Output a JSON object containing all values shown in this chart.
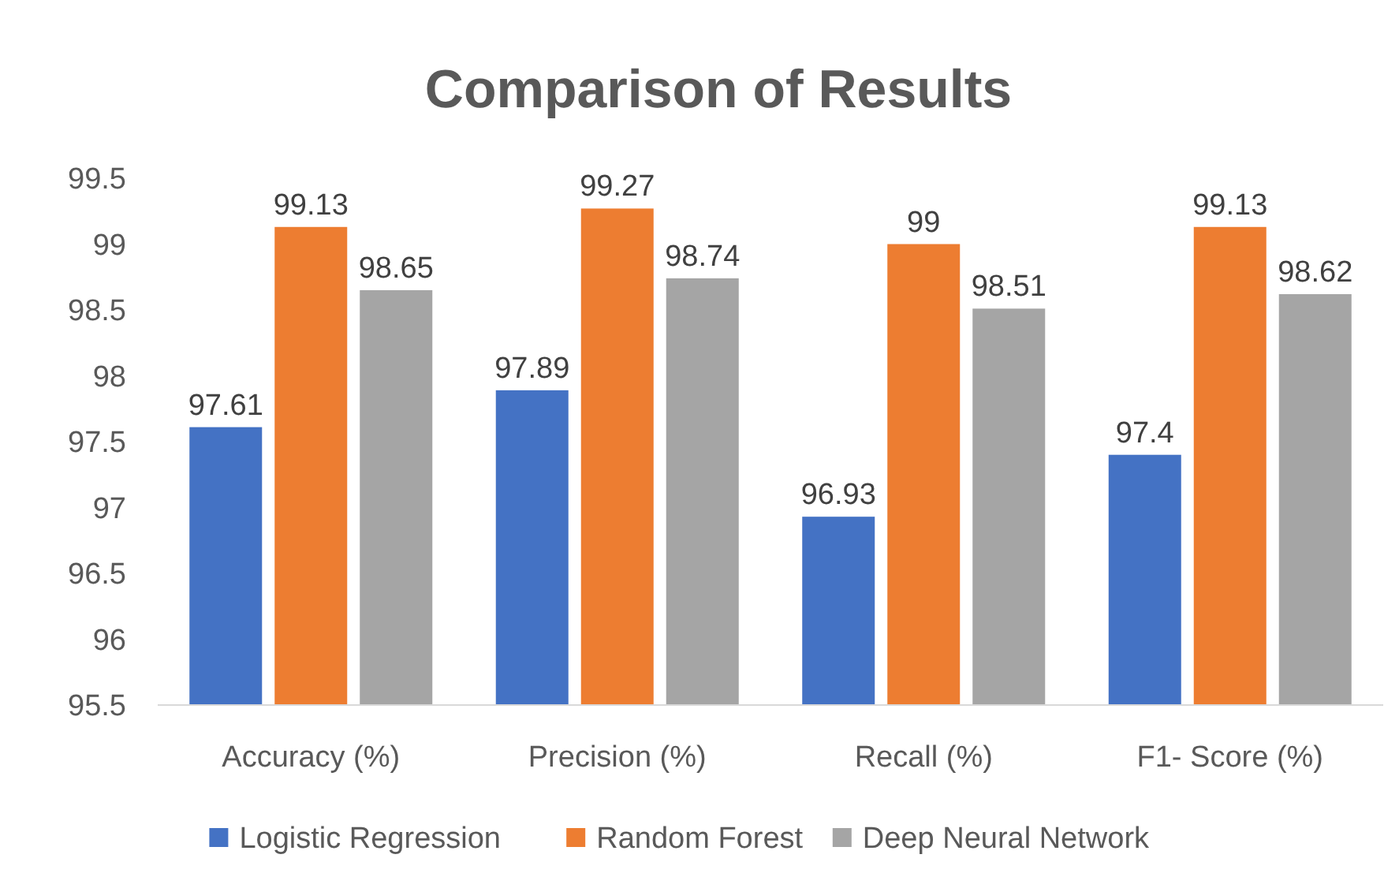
{
  "chart_data": {
    "type": "bar",
    "title": "Comparison of Results",
    "categories": [
      "Accuracy (%)",
      "Precision (%)",
      "Recall (%)",
      "F1- Score (%)"
    ],
    "series": [
      {
        "name": "Logistic Regression",
        "color": "#4472c4",
        "values": [
          97.61,
          97.89,
          96.93,
          97.4
        ]
      },
      {
        "name": "Random Forest",
        "color": "#ed7d31",
        "values": [
          99.13,
          99.27,
          99,
          99.13
        ]
      },
      {
        "name": "Deep Neural Network",
        "color": "#a5a5a5",
        "values": [
          98.65,
          98.74,
          98.51,
          98.62
        ]
      }
    ],
    "ylim": [
      95.5,
      99.5
    ],
    "yticks": [
      95.5,
      96,
      96.5,
      97,
      97.5,
      98,
      98.5,
      99,
      99.5
    ],
    "grid": false,
    "legend": "bottom",
    "data_labels": true
  }
}
